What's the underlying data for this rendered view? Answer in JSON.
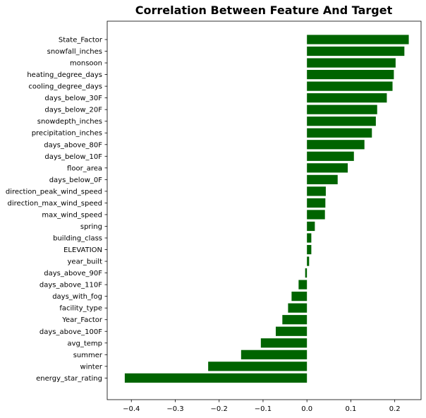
{
  "chart_data": {
    "type": "bar",
    "orientation": "horizontal",
    "title": "Correlation Between Feature And Target",
    "xlabel": "",
    "ylabel": "",
    "bar_color": "#006400",
    "grid": false,
    "xlim": [
      -0.455,
      0.26
    ],
    "xticks": [
      -0.4,
      -0.3,
      -0.2,
      -0.1,
      0.0,
      0.1,
      0.2
    ],
    "xtick_labels": [
      "−0.4",
      "−0.3",
      "−0.2",
      "−0.1",
      "0.0",
      "0.1",
      "0.2"
    ],
    "categories": [
      "State_Factor",
      "snowfall_inches",
      "monsoon",
      "heating_degree_days",
      "cooling_degree_days",
      "days_below_30F",
      "days_below_20F",
      "snowdepth_inches",
      "precipitation_inches",
      "days_above_80F",
      "days_below_10F",
      "floor_area",
      "days_below_0F",
      "direction_peak_wind_speed",
      "direction_max_wind_speed",
      "max_wind_speed",
      "spring",
      "building_class",
      "ELEVATION",
      "year_built",
      "days_above_90F",
      "days_above_110F",
      "days_with_fog",
      "facility_type",
      "Year_Factor",
      "days_above_100F",
      "avg_temp",
      "summer",
      "winter",
      "energy_star_rating"
    ],
    "values": [
      0.232,
      0.222,
      0.202,
      0.198,
      0.195,
      0.182,
      0.16,
      0.157,
      0.148,
      0.131,
      0.107,
      0.093,
      0.07,
      0.043,
      0.042,
      0.041,
      0.018,
      0.01,
      0.01,
      0.005,
      -0.004,
      -0.019,
      -0.035,
      -0.043,
      -0.056,
      -0.071,
      -0.105,
      -0.15,
      -0.225,
      -0.415
    ]
  }
}
